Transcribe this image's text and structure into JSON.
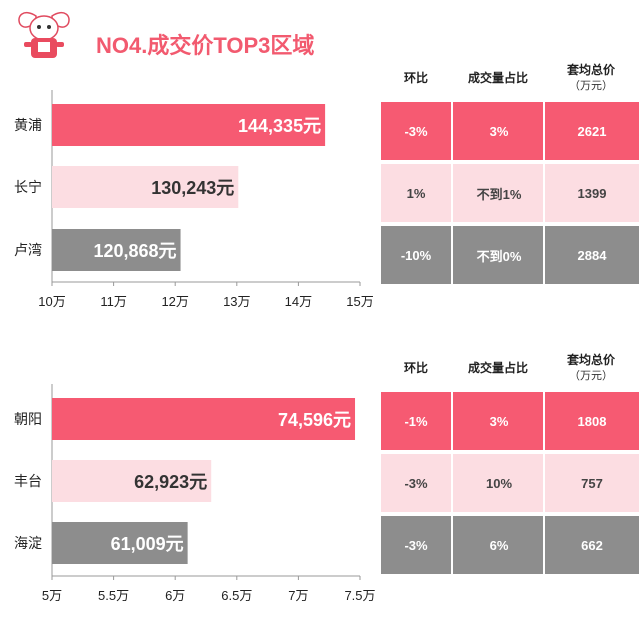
{
  "title": "NO4.成交价TOP3区域",
  "logo_icon": "mascot-icon",
  "colors": {
    "accent": "#f25a6f",
    "bar_top": "#f65a72",
    "bar_mid": "#fcdde2",
    "bar_low": "#8d8d8d"
  },
  "chart_data": [
    {
      "type": "bar",
      "orientation": "horizontal",
      "categories": [
        "黄浦",
        "长宁",
        "卢湾"
      ],
      "values": [
        144335,
        130243,
        120868
      ],
      "value_labels": [
        "144,335元",
        "130,243元",
        "120,868元"
      ],
      "xlim": [
        100000,
        150000
      ],
      "xticks": [
        100000,
        110000,
        120000,
        130000,
        140000,
        150000
      ],
      "xtick_labels": [
        "10万",
        "11万",
        "12万",
        "13万",
        "14万",
        "15万"
      ],
      "table": {
        "headers": [
          "环比",
          "成交量占比",
          "套均总价"
        ],
        "header_unit": "（万元）",
        "rows": [
          [
            "-3%",
            "3%",
            "2621"
          ],
          [
            "1%",
            "不到1%",
            "1399"
          ],
          [
            "-10%",
            "不到0%",
            "2884"
          ]
        ]
      }
    },
    {
      "type": "bar",
      "orientation": "horizontal",
      "categories": [
        "朝阳",
        "丰台",
        "海淀"
      ],
      "values": [
        74596,
        62923,
        61009
      ],
      "value_labels": [
        "74,596元",
        "62,923元",
        "61,009元"
      ],
      "xlim": [
        50000,
        75000
      ],
      "xticks": [
        50000,
        55000,
        60000,
        65000,
        70000,
        75000
      ],
      "xtick_labels": [
        "5万",
        "5.5万",
        "6万",
        "6.5万",
        "7万",
        "7.5万"
      ],
      "table": {
        "headers": [
          "环比",
          "成交量占比",
          "套均总价"
        ],
        "header_unit": "（万元）",
        "rows": [
          [
            "-1%",
            "3%",
            "1808"
          ],
          [
            "-3%",
            "10%",
            "757"
          ],
          [
            "-3%",
            "6%",
            "662"
          ]
        ]
      }
    }
  ]
}
